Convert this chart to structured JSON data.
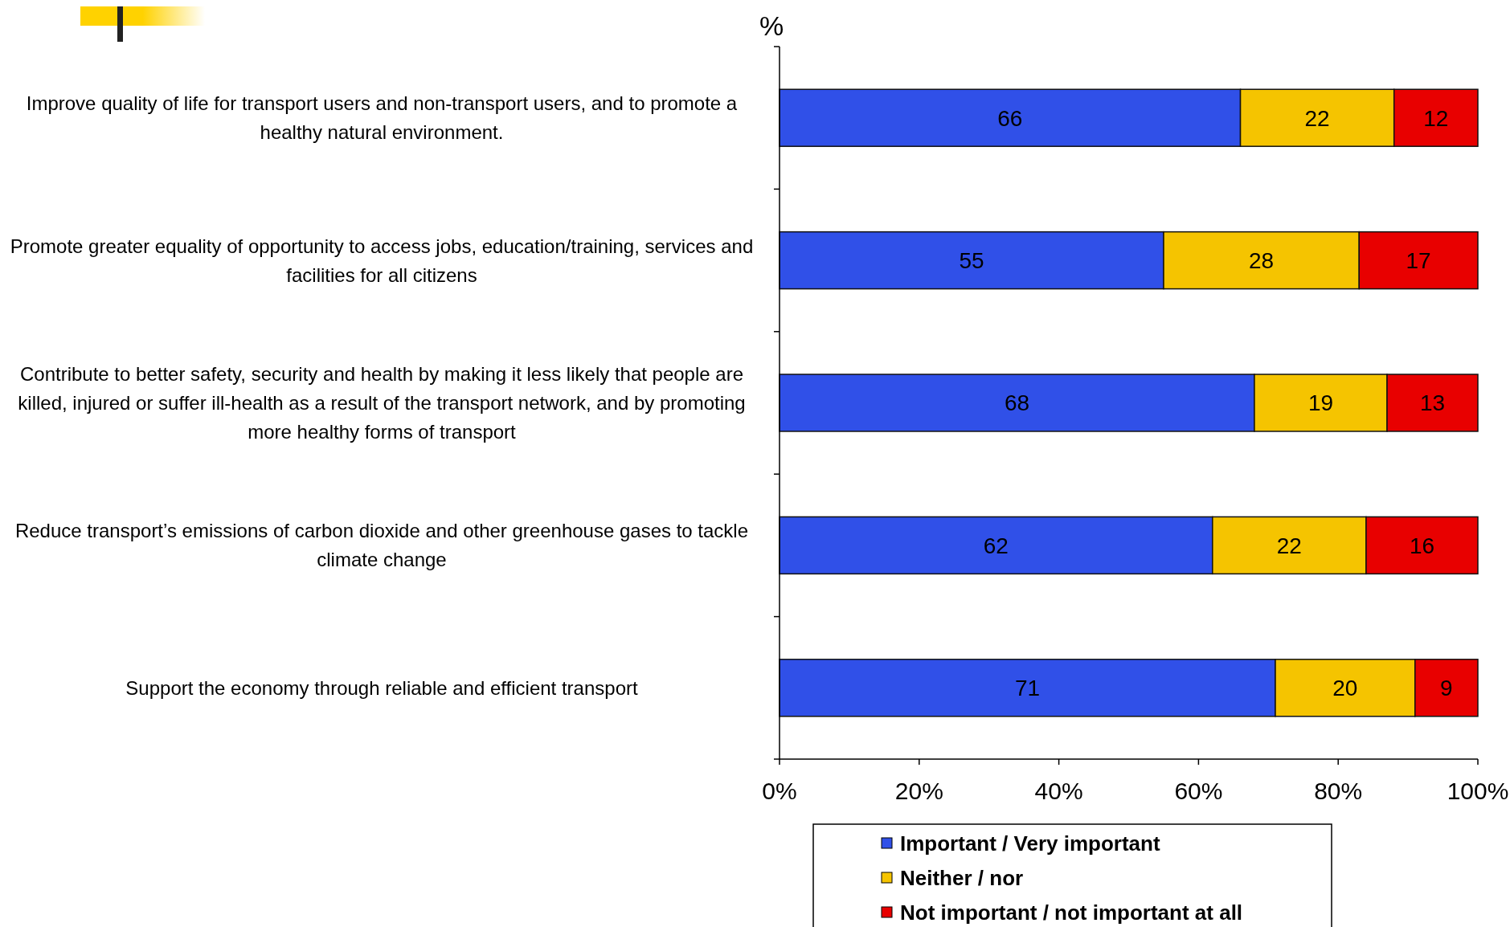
{
  "chart_data": {
    "type": "bar",
    "orientation": "horizontal",
    "stacked": true,
    "data_labels": true,
    "legend": "bottom",
    "grid": false,
    "categories": [
      "Improve quality of life for transport users and non-transport users, and to promote a healthy natural environment.",
      "Promote greater equality of opportunity to access jobs, education/training, services and facilities for all citizens",
      "Contribute to better safety, security and health by making it less likely that people are killed, injured or suffer ill-health as a result of the transport network, and by promoting more healthy forms of transport",
      "Reduce transport’s emissions of carbon dioxide and other greenhouse gases to tackle climate change",
      "Support the economy through reliable and efficient transport"
    ],
    "series": [
      {
        "name": "Important / Very important",
        "color": "#3050e8",
        "values": [
          66,
          55,
          68,
          62,
          71
        ]
      },
      {
        "name": "Neither / nor",
        "color": "#f5c400",
        "values": [
          22,
          28,
          19,
          22,
          20
        ]
      },
      {
        "name": "Not important / not important at all",
        "color": "#e80000",
        "values": [
          12,
          17,
          13,
          16,
          9
        ]
      }
    ],
    "xlim": [
      0,
      100
    ],
    "xticks": [
      {
        "value": 0,
        "label": "0%"
      },
      {
        "value": 20,
        "label": "20%"
      },
      {
        "value": 40,
        "label": "40%"
      },
      {
        "value": 60,
        "label": "60%"
      },
      {
        "value": 80,
        "label": "80%"
      },
      {
        "value": 100,
        "label": "100%"
      }
    ],
    "annotations": [
      "%"
    ]
  }
}
